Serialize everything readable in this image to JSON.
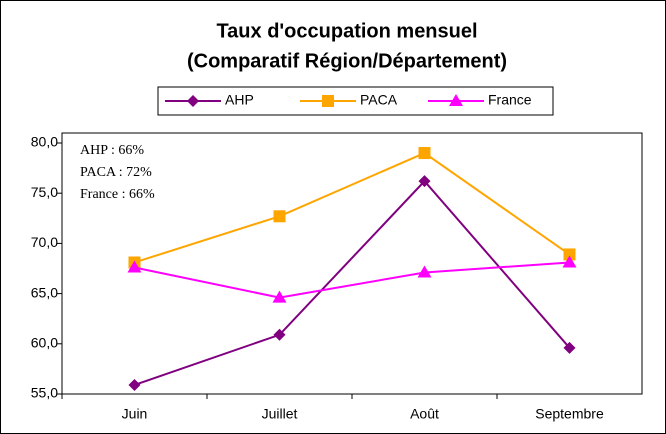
{
  "chart_data": {
    "type": "line",
    "title": [
      "Taux d'occupation mensuel",
      "(Comparatif Région/Département)"
    ],
    "annotations": [
      "AHP : 66%",
      "PACA : 72%",
      "France : 66%"
    ],
    "categories": [
      "Juin",
      "Juillet",
      "Août",
      "Septembre"
    ],
    "series": [
      {
        "name": "AHP",
        "color": "#800080",
        "marker": "diamond",
        "values": [
          55.9,
          60.9,
          76.2,
          59.6
        ]
      },
      {
        "name": "PACA",
        "color": "#ffa500",
        "marker": "square",
        "values": [
          68.1,
          72.7,
          79.0,
          68.9
        ]
      },
      {
        "name": "France",
        "color": "#ff00ff",
        "marker": "triangle",
        "values": [
          67.6,
          64.6,
          67.1,
          68.1
        ]
      }
    ],
    "ylim": [
      55,
      80
    ],
    "yticks": [
      {
        "value": 55,
        "label": "55,0"
      },
      {
        "value": 60,
        "label": "60,0"
      },
      {
        "value": 65,
        "label": "65,0"
      },
      {
        "value": 70,
        "label": "70,0"
      },
      {
        "value": 75,
        "label": "75,0"
      },
      {
        "value": 80,
        "label": "80,0"
      }
    ],
    "legend": "top"
  }
}
